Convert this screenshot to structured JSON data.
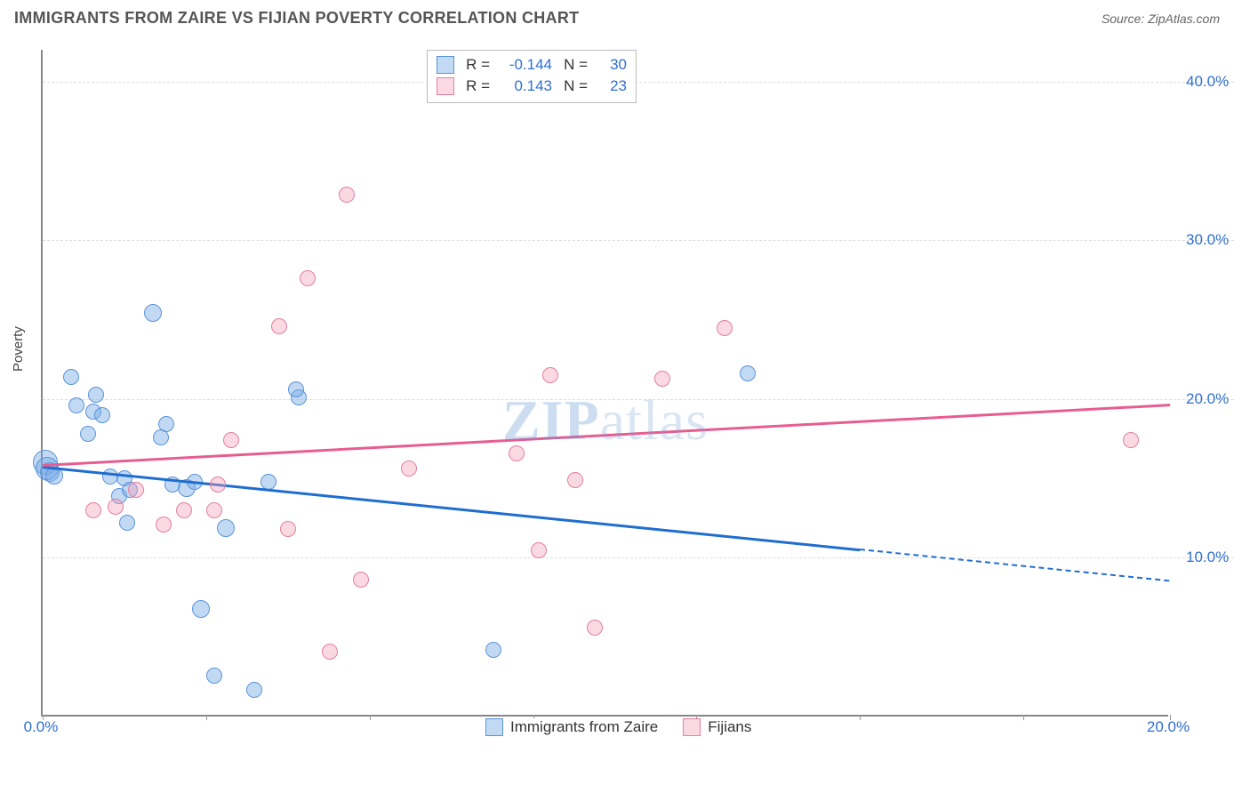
{
  "title": "IMMIGRANTS FROM ZAIRE VS FIJIAN POVERTY CORRELATION CHART",
  "source_label": "Source: ",
  "source_name": "ZipAtlas.com",
  "ylabel": "Poverty",
  "watermark_a": "ZIP",
  "watermark_b": "atlas",
  "chart": {
    "type": "scatter",
    "background_color": "#ffffff",
    "grid_color": "#dddddd",
    "axis_color": "#888888",
    "tick_label_color": "#2f6fd0",
    "xlim": [
      0,
      20
    ],
    "ylim": [
      0,
      42
    ],
    "x_tick_positions": [
      0,
      2.9,
      5.8,
      8.7,
      11.6,
      14.5,
      17.4,
      20
    ],
    "x_tick_labels": [
      "0.0%",
      "",
      "",
      "",
      "",
      "",
      "",
      "20.0%"
    ],
    "y_grid": [
      {
        "v": 10,
        "label": "10.0%"
      },
      {
        "v": 20,
        "label": "20.0%"
      },
      {
        "v": 30,
        "label": "30.0%"
      },
      {
        "v": 40,
        "label": "40.0%"
      }
    ],
    "series": [
      {
        "key": "zaire",
        "label": "Immigrants from Zaire",
        "fill": "rgba(120,170,230,0.45)",
        "stroke": "#5a94d6",
        "line_color": "#1f6dd0",
        "marker_radius": 10,
        "stats": {
          "R_label": "R = ",
          "R": "-0.144",
          "N_label": "N = ",
          "N": "30"
        },
        "trend": {
          "x1": 0,
          "y1": 15.8,
          "x2": 20,
          "y2": 8.6,
          "solid_until_x": 14.5
        },
        "points": [
          {
            "x": 0.05,
            "y": 16.0,
            "r": 14
          },
          {
            "x": 0.08,
            "y": 15.6,
            "r": 13
          },
          {
            "x": 0.12,
            "y": 15.4,
            "r": 11
          },
          {
            "x": 0.2,
            "y": 15.2,
            "r": 10
          },
          {
            "x": 0.5,
            "y": 21.4,
            "r": 9
          },
          {
            "x": 0.6,
            "y": 19.6,
            "r": 9
          },
          {
            "x": 0.9,
            "y": 19.2,
            "r": 9
          },
          {
            "x": 0.95,
            "y": 20.3,
            "r": 9
          },
          {
            "x": 0.8,
            "y": 17.8,
            "r": 9
          },
          {
            "x": 1.05,
            "y": 19.0,
            "r": 9
          },
          {
            "x": 1.2,
            "y": 15.1,
            "r": 9
          },
          {
            "x": 1.35,
            "y": 13.9,
            "r": 9
          },
          {
            "x": 1.45,
            "y": 15.0,
            "r": 9
          },
          {
            "x": 1.55,
            "y": 14.3,
            "r": 9
          },
          {
            "x": 1.5,
            "y": 12.2,
            "r": 9
          },
          {
            "x": 1.95,
            "y": 25.4,
            "r": 10
          },
          {
            "x": 2.1,
            "y": 17.6,
            "r": 9
          },
          {
            "x": 2.2,
            "y": 18.4,
            "r": 9
          },
          {
            "x": 2.3,
            "y": 14.6,
            "r": 9
          },
          {
            "x": 2.55,
            "y": 14.4,
            "r": 10
          },
          {
            "x": 2.7,
            "y": 14.8,
            "r": 9
          },
          {
            "x": 2.8,
            "y": 6.8,
            "r": 10
          },
          {
            "x": 3.05,
            "y": 2.6,
            "r": 9
          },
          {
            "x": 3.25,
            "y": 11.9,
            "r": 10
          },
          {
            "x": 3.75,
            "y": 1.7,
            "r": 9
          },
          {
            "x": 4.0,
            "y": 14.8,
            "r": 9
          },
          {
            "x": 4.55,
            "y": 20.1,
            "r": 9
          },
          {
            "x": 4.5,
            "y": 20.6,
            "r": 9
          },
          {
            "x": 8.0,
            "y": 4.2,
            "r": 9
          },
          {
            "x": 12.5,
            "y": 21.6,
            "r": 9
          }
        ]
      },
      {
        "key": "fijians",
        "label": "Fijians",
        "fill": "rgba(245,160,185,0.4)",
        "stroke": "#e37fa0",
        "line_color": "#e75d92",
        "marker_radius": 10,
        "stats": {
          "R_label": "R = ",
          "R": " 0.143",
          "N_label": "N = ",
          "N": "23"
        },
        "trend": {
          "x1": 0,
          "y1": 15.9,
          "x2": 20,
          "y2": 19.7,
          "solid_until_x": 20
        },
        "points": [
          {
            "x": 0.9,
            "y": 13.0,
            "r": 9
          },
          {
            "x": 1.3,
            "y": 13.2,
            "r": 9
          },
          {
            "x": 1.65,
            "y": 14.3,
            "r": 9
          },
          {
            "x": 2.15,
            "y": 12.1,
            "r": 9
          },
          {
            "x": 2.5,
            "y": 13.0,
            "r": 9
          },
          {
            "x": 3.05,
            "y": 13.0,
            "r": 9
          },
          {
            "x": 3.1,
            "y": 14.6,
            "r": 9
          },
          {
            "x": 3.35,
            "y": 17.4,
            "r": 9
          },
          {
            "x": 4.2,
            "y": 24.6,
            "r": 9
          },
          {
            "x": 4.35,
            "y": 11.8,
            "r": 9
          },
          {
            "x": 4.7,
            "y": 27.6,
            "r": 9
          },
          {
            "x": 5.1,
            "y": 4.1,
            "r": 9
          },
          {
            "x": 5.4,
            "y": 32.9,
            "r": 9
          },
          {
            "x": 5.65,
            "y": 8.6,
            "r": 9
          },
          {
            "x": 6.5,
            "y": 15.6,
            "r": 9
          },
          {
            "x": 8.4,
            "y": 16.6,
            "r": 9
          },
          {
            "x": 8.8,
            "y": 10.5,
            "r": 9
          },
          {
            "x": 9.0,
            "y": 21.5,
            "r": 9
          },
          {
            "x": 9.45,
            "y": 14.9,
            "r": 9
          },
          {
            "x": 9.8,
            "y": 5.6,
            "r": 9
          },
          {
            "x": 11.0,
            "y": 21.3,
            "r": 9
          },
          {
            "x": 12.1,
            "y": 24.5,
            "r": 9
          },
          {
            "x": 19.3,
            "y": 17.4,
            "r": 9
          }
        ]
      }
    ]
  },
  "legend": [
    {
      "swatch_fill": "rgba(120,170,230,0.45)",
      "swatch_stroke": "#5a94d6",
      "label": "Immigrants from Zaire"
    },
    {
      "swatch_fill": "rgba(245,160,185,0.4)",
      "swatch_stroke": "#e37fa0",
      "label": "Fijians"
    }
  ]
}
